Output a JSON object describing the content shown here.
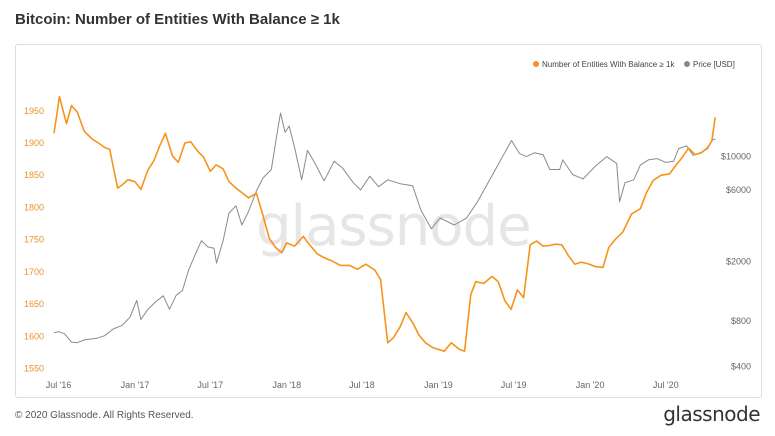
{
  "header": {
    "title": "Bitcoin: Number of Entities With Balance ≥ 1k"
  },
  "footer": {
    "copyright": "© 2020 Glassnode. All Rights Reserved.",
    "brand": "glassnode"
  },
  "watermark": "glassnode",
  "colors": {
    "entities": "#f7931a",
    "price": "#8a8a8a",
    "left_axis_text": "#e8922a"
  },
  "chart_data": {
    "type": "line",
    "title": "Bitcoin: Number of Entities With Balance ≥ 1k",
    "x_range": [
      "2016-06-20",
      "2020-10-30"
    ],
    "x_ticks": [
      {
        "date": "2016-07-01",
        "label": "Jul '16"
      },
      {
        "date": "2017-01-01",
        "label": "Jan '17"
      },
      {
        "date": "2017-07-01",
        "label": "Jul '17"
      },
      {
        "date": "2018-01-01",
        "label": "Jan '18"
      },
      {
        "date": "2018-07-01",
        "label": "Jul '18"
      },
      {
        "date": "2019-01-01",
        "label": "Jan '19"
      },
      {
        "date": "2019-07-01",
        "label": "Jul '19"
      },
      {
        "date": "2020-01-01",
        "label": "Jan '20"
      },
      {
        "date": "2020-07-01",
        "label": "Jul '20"
      }
    ],
    "y_left": {
      "range": [
        1540,
        1990
      ],
      "ticks": [
        1550,
        1600,
        1650,
        1700,
        1750,
        1800,
        1850,
        1900,
        1950
      ]
    },
    "y_right": {
      "scale": "log",
      "range": [
        350,
        30000
      ],
      "ticks": [
        {
          "value": 400,
          "label": "$400"
        },
        {
          "value": 800,
          "label": "$800"
        },
        {
          "value": 2000,
          "label": "$2000"
        },
        {
          "value": 6000,
          "label": "$6000"
        },
        {
          "value": 10000,
          "label": "$10000"
        }
      ]
    },
    "legend_position": "top-right",
    "grid": false,
    "series": [
      {
        "name": "Number of Entities With Balance ≥ 1k",
        "axis": "left",
        "points": [
          [
            "2016-06-20",
            1915
          ],
          [
            "2016-06-27",
            1945
          ],
          [
            "2016-07-03",
            1972
          ],
          [
            "2016-07-10",
            1955
          ],
          [
            "2016-07-20",
            1930
          ],
          [
            "2016-08-01",
            1958
          ],
          [
            "2016-08-15",
            1948
          ],
          [
            "2016-09-01",
            1918
          ],
          [
            "2016-09-20",
            1906
          ],
          [
            "2016-10-05",
            1900
          ],
          [
            "2016-10-20",
            1893
          ],
          [
            "2016-11-01",
            1890
          ],
          [
            "2016-11-20",
            1830
          ],
          [
            "2016-12-01",
            1835
          ],
          [
            "2016-12-15",
            1843
          ],
          [
            "2017-01-01",
            1840
          ],
          [
            "2017-01-15",
            1828
          ],
          [
            "2017-02-01",
            1858
          ],
          [
            "2017-02-15",
            1872
          ],
          [
            "2017-03-01",
            1895
          ],
          [
            "2017-03-15",
            1915
          ],
          [
            "2017-04-01",
            1880
          ],
          [
            "2017-04-15",
            1870
          ],
          [
            "2017-05-01",
            1900
          ],
          [
            "2017-05-15",
            1902
          ],
          [
            "2017-06-01",
            1887
          ],
          [
            "2017-06-15",
            1878
          ],
          [
            "2017-07-01",
            1856
          ],
          [
            "2017-07-15",
            1866
          ],
          [
            "2017-08-01",
            1860
          ],
          [
            "2017-08-15",
            1840
          ],
          [
            "2017-09-01",
            1830
          ],
          [
            "2017-10-01",
            1815
          ],
          [
            "2017-10-20",
            1822
          ],
          [
            "2017-11-01",
            1796
          ],
          [
            "2017-11-20",
            1752
          ],
          [
            "2017-12-05",
            1738
          ],
          [
            "2017-12-20",
            1730
          ],
          [
            "2018-01-01",
            1745
          ],
          [
            "2018-01-20",
            1740
          ],
          [
            "2018-02-10",
            1755
          ],
          [
            "2018-02-25",
            1742
          ],
          [
            "2018-03-15",
            1728
          ],
          [
            "2018-04-01",
            1722
          ],
          [
            "2018-04-20",
            1717
          ],
          [
            "2018-05-10",
            1710
          ],
          [
            "2018-06-01",
            1710
          ],
          [
            "2018-06-20",
            1704
          ],
          [
            "2018-07-10",
            1712
          ],
          [
            "2018-08-01",
            1703
          ],
          [
            "2018-08-15",
            1688
          ],
          [
            "2018-09-01",
            1590
          ],
          [
            "2018-09-15",
            1598
          ],
          [
            "2018-10-01",
            1615
          ],
          [
            "2018-10-15",
            1637
          ],
          [
            "2018-11-01",
            1620
          ],
          [
            "2018-11-15",
            1602
          ],
          [
            "2018-12-01",
            1590
          ],
          [
            "2018-12-20",
            1582
          ],
          [
            "2019-01-15",
            1577
          ],
          [
            "2019-02-01",
            1590
          ],
          [
            "2019-02-20",
            1580
          ],
          [
            "2019-03-05",
            1577
          ],
          [
            "2019-03-20",
            1665
          ],
          [
            "2019-04-01",
            1685
          ],
          [
            "2019-04-20",
            1682
          ],
          [
            "2019-05-10",
            1693
          ],
          [
            "2019-05-25",
            1685
          ],
          [
            "2019-06-10",
            1655
          ],
          [
            "2019-06-25",
            1642
          ],
          [
            "2019-07-10",
            1672
          ],
          [
            "2019-07-25",
            1660
          ],
          [
            "2019-08-10",
            1742
          ],
          [
            "2019-08-25",
            1748
          ],
          [
            "2019-09-10",
            1740
          ],
          [
            "2019-09-25",
            1741
          ],
          [
            "2019-10-10",
            1743
          ],
          [
            "2019-10-25",
            1742
          ],
          [
            "2019-11-10",
            1725
          ],
          [
            "2019-11-25",
            1712
          ],
          [
            "2019-12-10",
            1715
          ],
          [
            "2019-12-25",
            1713
          ],
          [
            "2020-01-15",
            1708
          ],
          [
            "2020-02-01",
            1707
          ],
          [
            "2020-02-15",
            1738
          ],
          [
            "2020-03-01",
            1750
          ],
          [
            "2020-03-20",
            1762
          ],
          [
            "2020-04-10",
            1790
          ],
          [
            "2020-05-01",
            1798
          ],
          [
            "2020-05-15",
            1822
          ],
          [
            "2020-06-01",
            1842
          ],
          [
            "2020-06-20",
            1850
          ],
          [
            "2020-07-10",
            1852
          ],
          [
            "2020-07-25",
            1865
          ],
          [
            "2020-08-10",
            1878
          ],
          [
            "2020-08-25",
            1892
          ],
          [
            "2020-09-10",
            1882
          ],
          [
            "2020-09-25",
            1885
          ],
          [
            "2020-10-10",
            1893
          ],
          [
            "2020-10-20",
            1903
          ],
          [
            "2020-10-28",
            1940
          ]
        ]
      },
      {
        "name": "Price [USD]",
        "axis": "right",
        "points": [
          [
            "2016-06-20",
            670
          ],
          [
            "2016-07-01",
            680
          ],
          [
            "2016-07-15",
            660
          ],
          [
            "2016-08-01",
            580
          ],
          [
            "2016-08-15",
            575
          ],
          [
            "2016-09-01",
            600
          ],
          [
            "2016-10-01",
            615
          ],
          [
            "2016-10-20",
            640
          ],
          [
            "2016-11-10",
            710
          ],
          [
            "2016-12-01",
            750
          ],
          [
            "2016-12-20",
            850
          ],
          [
            "2017-01-05",
            1100
          ],
          [
            "2017-01-15",
            820
          ],
          [
            "2017-02-01",
            960
          ],
          [
            "2017-02-20",
            1080
          ],
          [
            "2017-03-10",
            1180
          ],
          [
            "2017-03-25",
            960
          ],
          [
            "2017-04-10",
            1190
          ],
          [
            "2017-04-25",
            1280
          ],
          [
            "2017-05-10",
            1750
          ],
          [
            "2017-05-25",
            2200
          ],
          [
            "2017-06-10",
            2750
          ],
          [
            "2017-06-25",
            2500
          ],
          [
            "2017-07-10",
            2450
          ],
          [
            "2017-07-16",
            1950
          ],
          [
            "2017-08-01",
            2750
          ],
          [
            "2017-08-15",
            4200
          ],
          [
            "2017-09-01",
            4700
          ],
          [
            "2017-09-15",
            3500
          ],
          [
            "2017-10-01",
            4300
          ],
          [
            "2017-10-20",
            5900
          ],
          [
            "2017-11-05",
            7200
          ],
          [
            "2017-11-25",
            8200
          ],
          [
            "2017-12-10",
            15000
          ],
          [
            "2017-12-17",
            19500
          ],
          [
            "2017-12-28",
            14500
          ],
          [
            "2018-01-07",
            16000
          ],
          [
            "2018-01-20",
            11500
          ],
          [
            "2018-02-06",
            7000
          ],
          [
            "2018-02-20",
            11000
          ],
          [
            "2018-03-10",
            9000
          ],
          [
            "2018-04-01",
            6900
          ],
          [
            "2018-04-25",
            9300
          ],
          [
            "2018-05-15",
            8400
          ],
          [
            "2018-06-10",
            6700
          ],
          [
            "2018-06-28",
            6000
          ],
          [
            "2018-07-20",
            7400
          ],
          [
            "2018-08-10",
            6300
          ],
          [
            "2018-09-01",
            7000
          ],
          [
            "2018-10-01",
            6600
          ],
          [
            "2018-10-31",
            6400
          ],
          [
            "2018-11-20",
            4400
          ],
          [
            "2018-12-15",
            3300
          ],
          [
            "2019-01-05",
            3900
          ],
          [
            "2019-02-08",
            3500
          ],
          [
            "2019-03-10",
            3900
          ],
          [
            "2019-04-05",
            5000
          ],
          [
            "2019-05-15",
            7900
          ],
          [
            "2019-06-26",
            12800
          ],
          [
            "2019-07-15",
            10500
          ],
          [
            "2019-08-01",
            10000
          ],
          [
            "2019-08-20",
            10600
          ],
          [
            "2019-09-10",
            10300
          ],
          [
            "2019-09-26",
            8200
          ],
          [
            "2019-10-20",
            8200
          ],
          [
            "2019-10-27",
            9500
          ],
          [
            "2019-11-20",
            7600
          ],
          [
            "2019-12-15",
            7100
          ],
          [
            "2020-01-15",
            8700
          ],
          [
            "2020-02-10",
            10000
          ],
          [
            "2020-03-05",
            9000
          ],
          [
            "2020-03-12",
            5000
          ],
          [
            "2020-03-25",
            6700
          ],
          [
            "2020-04-15",
            7000
          ],
          [
            "2020-05-01",
            8800
          ],
          [
            "2020-05-20",
            9500
          ],
          [
            "2020-06-10",
            9700
          ],
          [
            "2020-07-01",
            9150
          ],
          [
            "2020-07-20",
            9300
          ],
          [
            "2020-08-01",
            11300
          ],
          [
            "2020-08-20",
            11800
          ],
          [
            "2020-09-05",
            10200
          ],
          [
            "2020-09-25",
            10700
          ],
          [
            "2020-10-10",
            11300
          ],
          [
            "2020-10-21",
            12900
          ],
          [
            "2020-10-28",
            13100
          ]
        ]
      }
    ]
  }
}
